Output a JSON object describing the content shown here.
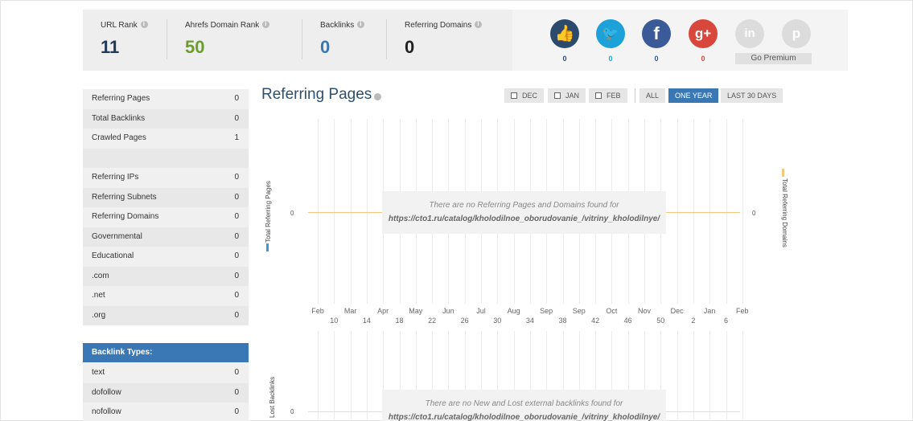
{
  "metrics": {
    "url_rank": {
      "label": "URL Rank",
      "value": "11",
      "color": "#1f3b57"
    },
    "domain_rank": {
      "label": "Ahrefs Domain Rank",
      "value": "50",
      "color": "#6a9c2e"
    },
    "backlinks": {
      "label": "Backlinks",
      "value": "0",
      "color": "#3a78b5"
    },
    "ref_domains": {
      "label": "Referring Domains",
      "value": "0",
      "color": "#222222"
    }
  },
  "social": [
    {
      "icon": "thumbs-up-icon",
      "glyph": "👍",
      "count": "0",
      "bg": "#2c4a6b",
      "countColor": "#2c4a6b"
    },
    {
      "icon": "twitter-icon",
      "glyph": "🐦",
      "count": "0",
      "bg": "#1da1d9",
      "countColor": "#1da1d9"
    },
    {
      "icon": "facebook-icon",
      "glyph": "f",
      "count": "0",
      "bg": "#3a5a98",
      "countColor": "#3a5a98"
    },
    {
      "icon": "google-plus-icon",
      "glyph": "g+",
      "count": "0",
      "bg": "#d9463b",
      "countColor": "#d9463b"
    },
    {
      "icon": "linkedin-icon",
      "glyph": "in",
      "count": "",
      "bg": "#dcdcdc",
      "countColor": "#999"
    },
    {
      "icon": "pinterest-icon",
      "glyph": "p",
      "count": "",
      "bg": "#dcdcdc",
      "countColor": "#999"
    }
  ],
  "premium_label": "Go Premium",
  "sidebar": {
    "group1": [
      {
        "label": "Referring Pages",
        "value": "0"
      },
      {
        "label": "Total Backlinks",
        "value": "0"
      },
      {
        "label": "Crawled Pages",
        "value": "1"
      }
    ],
    "group2": [
      {
        "label": "Referring IPs",
        "value": "0"
      },
      {
        "label": "Referring Subnets",
        "value": "0"
      },
      {
        "label": "Referring Domains",
        "value": "0"
      },
      {
        "label": "Governmental",
        "value": "0"
      },
      {
        "label": "Educational",
        "value": "0"
      },
      {
        "label": ".com",
        "value": "0"
      },
      {
        "label": ".net",
        "value": "0"
      },
      {
        "label": ".org",
        "value": "0"
      }
    ],
    "backlink_types_header": "Backlink Types:",
    "backlink_types": [
      {
        "label": "text",
        "value": "0"
      },
      {
        "label": "dofollow",
        "value": "0"
      },
      {
        "label": "nofollow",
        "value": "0"
      }
    ]
  },
  "chart": {
    "title": "Referring Pages",
    "buttons": {
      "dec": "DEC",
      "jan": "JAN",
      "feb": "FEB",
      "all": "ALL",
      "one_year": "ONE YEAR",
      "last30": "LAST 30 DAYS"
    },
    "left_axis_label": "Total Referring Pages",
    "right_axis_label": "Total Referring Domains",
    "left_zero": "0",
    "right_zero": "0",
    "nodata_line1": "There are no Referring Pages and Domains found for",
    "nodata_line2": "https://cto1.ru/catalog/kholodilnoe_oborudovanie_/vitriny_kholodilnye/",
    "months": [
      "Feb",
      "Mar",
      "Apr",
      "May",
      "Jun",
      "Jul",
      "Aug",
      "Sep",
      "Sep",
      "Oct",
      "Nov",
      "Dec",
      "Jan",
      "Feb"
    ],
    "days": [
      "10",
      "14",
      "18",
      "22",
      "26",
      "30",
      "34",
      "38",
      "42",
      "46",
      "50",
      "2",
      "6"
    ]
  },
  "chart2": {
    "left_axis_label": "Lost Backlinks",
    "zero": "0",
    "nodata_line1": "There are no New and Lost external backlinks found for",
    "nodata_line2": "https://cto1.ru/catalog/kholodilnoe_oborudovanie_/vitriny_kholodilnye/"
  },
  "chart_data": {
    "type": "line",
    "title": "Referring Pages",
    "ylabel": "Total Referring Pages",
    "y2label": "Total Referring Domains",
    "x": [
      "Feb",
      "Mar",
      "Apr",
      "May",
      "Jun",
      "Jul",
      "Aug",
      "Sep",
      "Sep",
      "Oct",
      "Nov",
      "Dec",
      "Jan",
      "Feb"
    ],
    "series": [
      {
        "name": "Total Referring Pages",
        "values": [
          0,
          0,
          0,
          0,
          0,
          0,
          0,
          0,
          0,
          0,
          0,
          0,
          0,
          0
        ],
        "color": "#3a9ad9"
      },
      {
        "name": "Total Referring Domains",
        "values": [
          0,
          0,
          0,
          0,
          0,
          0,
          0,
          0,
          0,
          0,
          0,
          0,
          0,
          0
        ],
        "color": "#f5c77e"
      }
    ]
  }
}
